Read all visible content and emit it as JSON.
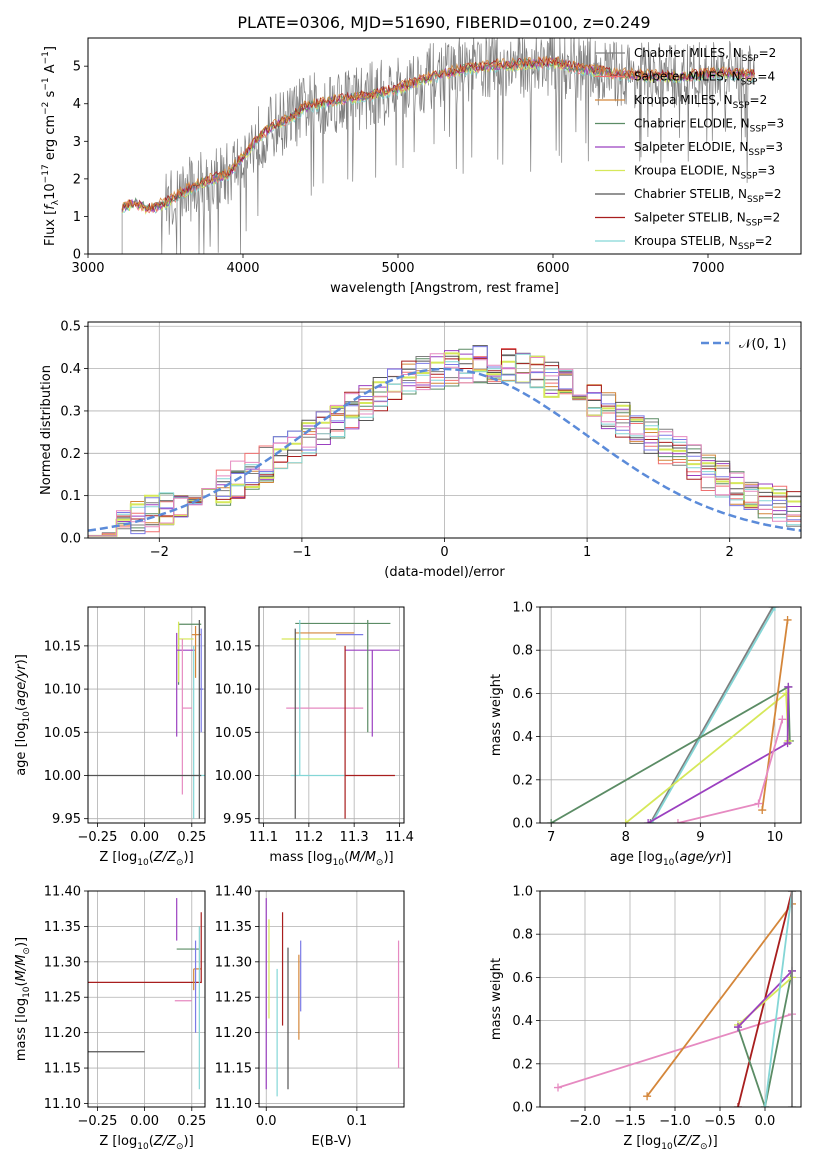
{
  "figure": {
    "title": "PLATE=0306, MJD=51690, FIBERID=0100, z=0.249"
  },
  "legend_colors": {
    "Chabrier MILES": "#7f7f7f",
    "Salpeter MILES": "#f07070",
    "Kroupa MILES": "#d4863a",
    "Chabrier ELODIE": "#5b8c65",
    "Salpeter ELODIE": "#9b40c0",
    "Kroupa ELODIE": "#d6e85a",
    "Chabrier STELIB": "#555555",
    "Salpeter STELIB": "#a81e1e",
    "Kroupa STELIB": "#84d6d6",
    "lilac": "#7b7be6",
    "pink": "#e68ac1",
    "normal": "#5b8bd9"
  },
  "chart_data": [
    {
      "id": "spectrum",
      "type": "line",
      "xlabel": "wavelength [Angstrom, rest frame]",
      "ylabel": "Flux [f_λ10^{-17} erg cm^{-2} s^{-1} A^{-1}]",
      "xlim": [
        3000,
        7600
      ],
      "ylim": [
        0,
        5.75
      ],
      "xticks": [
        3000,
        4000,
        5000,
        6000,
        7000
      ],
      "yticks": [
        0,
        1,
        2,
        3,
        4,
        5
      ],
      "legend_position": "upper right",
      "series": [
        {
          "name": "Chabrier MILES, N_SSP=2",
          "label_main": "Chabrier MILES, N",
          "label_sub": "SSP",
          "label_tail": "=2",
          "color": "#7f7f7f"
        },
        {
          "name": "Salpeter MILES, N_SSP=4",
          "label_main": "Salpeter MILES, N",
          "label_sub": "SSP",
          "label_tail": "=4",
          "color": "#f07070"
        },
        {
          "name": "Kroupa MILES, N_SSP=2",
          "label_main": "Kroupa MILES, N",
          "label_sub": "SSP",
          "label_tail": "=2",
          "color": "#d4863a"
        },
        {
          "name": "Chabrier ELODIE, N_SSP=3",
          "label_main": "Chabrier ELODIE, N",
          "label_sub": "SSP",
          "label_tail": "=3",
          "color": "#5b8c65"
        },
        {
          "name": "Salpeter ELODIE, N_SSP=3",
          "label_main": "Salpeter ELODIE, N",
          "label_sub": "SSP",
          "label_tail": "=3",
          "color": "#9b40c0"
        },
        {
          "name": "Kroupa ELODIE, N_SSP=3",
          "label_main": "Kroupa ELODIE, N",
          "label_sub": "SSP",
          "label_tail": "=3",
          "color": "#d6e85a"
        },
        {
          "name": "Chabrier STELIB, N_SSP=2",
          "label_main": "Chabrier STELIB, N",
          "label_sub": "SSP",
          "label_tail": "=2",
          "color": "#555555"
        },
        {
          "name": "Salpeter STELIB, N_SSP=2",
          "label_main": "Salpeter STELIB, N",
          "label_sub": "SSP",
          "label_tail": "=2",
          "color": "#a81e1e"
        },
        {
          "name": "Kroupa STELIB, N_SSP=2",
          "label_main": "Kroupa STELIB, N",
          "label_sub": "SSP",
          "label_tail": "=2",
          "color": "#84d6d6"
        }
      ],
      "continuum_anchor_points": {
        "x": [
          3220,
          3300,
          3400,
          3500,
          3600,
          3700,
          3800,
          3900,
          4000,
          4100,
          4200,
          4300,
          4400,
          4600,
          4800,
          5000,
          5200,
          5400,
          5600,
          5800,
          6000,
          6200,
          6400,
          6600,
          6800,
          7000,
          7200,
          7300
        ],
        "y": [
          1.25,
          1.35,
          1.2,
          1.35,
          1.6,
          1.85,
          2.0,
          2.1,
          2.6,
          3.1,
          3.4,
          3.6,
          3.9,
          4.1,
          4.2,
          4.4,
          4.7,
          4.9,
          5.0,
          5.05,
          5.1,
          4.9,
          4.8,
          4.75,
          4.7,
          4.8,
          4.8,
          4.75
        ]
      }
    },
    {
      "id": "residuals",
      "type": "histogram",
      "xlabel": "(data-model)/error",
      "ylabel": "Normed distribution",
      "xlim": [
        -2.5,
        2.5
      ],
      "ylim": [
        0,
        0.51
      ],
      "xticks": [
        -2,
        -1,
        0,
        1,
        2
      ],
      "yticks": [
        0.0,
        0.1,
        0.2,
        0.3,
        0.4,
        0.5
      ],
      "legend": {
        "text": "𝒩(0, 1)",
        "position": "upper right"
      },
      "bin_width": 0.1
    },
    {
      "id": "age_vs_Z",
      "type": "errorbar",
      "xlabel": "Z [log10(Z/Z☉)]",
      "ylabel": "age  [log10(age/yr)]",
      "xlim": [
        -0.3,
        0.32
      ],
      "ylim": [
        9.945,
        10.195
      ],
      "xticks": [
        -0.25,
        0.0,
        0.25
      ],
      "yticks": [
        9.95,
        10.0,
        10.05,
        10.1,
        10.15
      ],
      "points": [
        {
          "x": 0.18,
          "xerr": [
            0.0,
            0.12
          ],
          "y": 10.175,
          "yerr": [
            0.07,
            0.0
          ],
          "color": "#5b8c65"
        },
        {
          "x": 0.18,
          "xerr": [
            0.0,
            0.08
          ],
          "y": 10.158,
          "yerr": [
            0.05,
            0.02
          ],
          "color": "#d6e85a"
        },
        {
          "x": 0.17,
          "xerr": [
            0.0,
            0.1
          ],
          "y": 10.145,
          "yerr": [
            0.1,
            0.02
          ],
          "color": "#9b40c0"
        },
        {
          "x": 0.27,
          "xerr": [
            0.02,
            0.03
          ],
          "y": 10.163,
          "yerr": [
            0.05,
            0.01
          ],
          "color": "#d4863a"
        },
        {
          "x": 0.2,
          "xerr": [
            0.0,
            0.05
          ],
          "y": 10.078,
          "yerr": [
            0.1,
            0.08
          ],
          "color": "#e68ac1"
        },
        {
          "x": 0.26,
          "xerr": [
            0.0,
            0.06
          ],
          "y": 10.0,
          "yerr": [
            0.05,
            0.15
          ],
          "color": "#84d6d6"
        },
        {
          "x": 0.0,
          "xerr": [
            0.3,
            0.3
          ],
          "y": 10.0,
          "yerr": [
            0.0,
            0.0
          ],
          "color": "#555555"
        },
        {
          "x": 0.29,
          "xerr": [
            0.0,
            0.02
          ],
          "y": 10.1,
          "yerr": [
            0.15,
            0.08
          ],
          "color": "#555555"
        },
        {
          "x": 0.3,
          "xerr": [
            0.0,
            0.01
          ],
          "y": 10.1,
          "yerr": [
            0.05,
            0.07
          ],
          "color": "#7b7be6"
        }
      ]
    },
    {
      "id": "age_vs_mass",
      "type": "errorbar",
      "xlabel": "mass [log10(M/M☉)]",
      "ylabel": "",
      "xlim": [
        11.09,
        11.41
      ],
      "ylim": [
        9.945,
        10.195
      ],
      "xticks": [
        11.1,
        11.2,
        11.3,
        11.4
      ],
      "yticks": [
        9.95,
        10.0,
        10.05,
        10.1,
        10.15
      ],
      "points": [
        {
          "x": 11.32,
          "xerr": [
            0.15,
            0.06
          ],
          "y": 10.176,
          "yerr": [
            0.0,
            0.0
          ],
          "color": "#5b8c65"
        },
        {
          "x": 11.3,
          "xerr": [
            0.13,
            0.0
          ],
          "y": 10.165,
          "yerr": [
            0.0,
            0.0
          ],
          "color": "#d4863a"
        },
        {
          "x": 11.26,
          "xerr": [
            0.0,
            0.06
          ],
          "y": 10.163,
          "yerr": [
            0.0,
            0.0
          ],
          "color": "#7b7be6"
        },
        {
          "x": 11.2,
          "xerr": [
            0.06,
            0.06
          ],
          "y": 10.158,
          "yerr": [
            0.0,
            0.0
          ],
          "color": "#d6e85a"
        },
        {
          "x": 11.34,
          "xerr": [
            0.06,
            0.06
          ],
          "y": 10.145,
          "yerr": [
            0.1,
            0.0
          ],
          "color": "#9b40c0"
        },
        {
          "x": 11.25,
          "xerr": [
            0.1,
            0.07
          ],
          "y": 10.078,
          "yerr": [
            0.0,
            0.0
          ],
          "color": "#e68ac1"
        },
        {
          "x": 11.28,
          "xerr": [
            0.12,
            0.0
          ],
          "y": 10.0,
          "yerr": [
            0.0,
            0.0
          ],
          "color": "#84d6d6"
        },
        {
          "x": 11.31,
          "xerr": [
            0.03,
            0.08
          ],
          "y": 10.0,
          "yerr": [
            0.0,
            0.0
          ],
          "color": "#a81e1e"
        },
        {
          "x": 11.17,
          "xerr": [
            0.0,
            0.0
          ],
          "y": 10.1,
          "yerr": [
            0.15,
            0.07
          ],
          "color": "#555555"
        },
        {
          "x": 11.18,
          "xerr": [
            0.0,
            0.0
          ],
          "y": 10.1,
          "yerr": [
            0.1,
            0.08
          ],
          "color": "#84d6d6"
        },
        {
          "x": 11.33,
          "xerr": [
            0.0,
            0.0
          ],
          "y": 10.1,
          "yerr": [
            0.05,
            0.08
          ],
          "color": "#5b8c65"
        },
        {
          "x": 11.28,
          "xerr": [
            0.0,
            0.0
          ],
          "y": 10.05,
          "yerr": [
            0.1,
            0.1
          ],
          "color": "#a81e1e"
        }
      ]
    },
    {
      "id": "weight_vs_age",
      "type": "line",
      "xlabel": "age  [log10(age/yr)]",
      "ylabel": "mass weight",
      "xlim": [
        6.85,
        10.35
      ],
      "ylim": [
        0,
        1.0
      ],
      "xticks": [
        7,
        8,
        9,
        10
      ],
      "yticks": [
        0.0,
        0.2,
        0.4,
        0.6,
        0.8,
        1.0
      ],
      "series": [
        {
          "name": "Chabrier MILES",
          "x": [
            8.33,
            9.97
          ],
          "y": [
            0.0,
            1.0
          ],
          "color": "#7f7f7f"
        },
        {
          "name": "Kroupa STELIB",
          "x": [
            8.35,
            10.0
          ],
          "y": [
            0.0,
            1.0
          ],
          "color": "#84d6d6"
        },
        {
          "name": "Chabrier ELODIE",
          "x": [
            7.0,
            10.18,
            10.2
          ],
          "y": [
            0.0,
            0.63,
            0.38
          ],
          "color": "#5b8c65"
        },
        {
          "name": "Kroupa ELODIE",
          "x": [
            8.0,
            10.15,
            10.18
          ],
          "y": [
            0.0,
            0.6,
            0.38
          ],
          "color": "#d6e85a"
        },
        {
          "name": "Salpeter ELODIE",
          "x": [
            8.3,
            10.17,
            10.18
          ],
          "y": [
            0.0,
            0.37,
            0.63
          ],
          "color": "#9b40c0"
        },
        {
          "name": "Kroupa MILES",
          "x": [
            9.83,
            10.17
          ],
          "y": [
            0.06,
            0.94
          ],
          "color": "#d4863a"
        },
        {
          "name": "Salpeter MILES",
          "x": [
            8.7,
            9.78,
            10.1
          ],
          "y": [
            0.0,
            0.09,
            0.48
          ],
          "color": "#e68ac1"
        }
      ]
    },
    {
      "id": "mass_vs_Z",
      "type": "errorbar",
      "xlabel": "Z [log10(Z/Z☉)]",
      "ylabel": "mass [log10(M/M☉)]",
      "xlim": [
        -0.3,
        0.32
      ],
      "ylim": [
        11.095,
        11.4
      ],
      "xticks": [
        -0.25,
        0.0,
        0.25
      ],
      "yticks": [
        11.1,
        11.15,
        11.2,
        11.25,
        11.3,
        11.35,
        11.4
      ],
      "points": [
        {
          "x": 0.17,
          "xerr": [
            0.0,
            0.0
          ],
          "y": 11.37,
          "yerr": [
            0.04,
            0.02
          ],
          "color": "#9b40c0"
        },
        {
          "x": 0.17,
          "xerr": [
            0.0,
            0.12
          ],
          "y": 11.318,
          "yerr": [
            0.0,
            0.0
          ],
          "color": "#5b8c65"
        },
        {
          "x": 0.0,
          "xerr": [
            0.3,
            0.3
          ],
          "y": 11.271,
          "yerr": [
            0.0,
            0.0
          ],
          "color": "#a81e1e"
        },
        {
          "x": 0.26,
          "xerr": [
            0.0,
            0.04
          ],
          "y": 11.29,
          "yerr": [
            0.03,
            0.0
          ],
          "color": "#d4863a"
        },
        {
          "x": 0.2,
          "xerr": [
            0.04,
            0.05
          ],
          "y": 11.245,
          "yerr": [
            0.0,
            0.0
          ],
          "color": "#e68ac1"
        },
        {
          "x": 0.0,
          "xerr": [
            0.3,
            0.0
          ],
          "y": 11.173,
          "yerr": [
            0.0,
            0.0
          ],
          "color": "#555555"
        },
        {
          "x": 0.27,
          "xerr": [
            0.0,
            0.0
          ],
          "y": 11.28,
          "yerr": [
            0.08,
            0.05
          ],
          "color": "#7b7be6"
        },
        {
          "x": 0.29,
          "xerr": [
            0.0,
            0.0
          ],
          "y": 11.2,
          "yerr": [
            0.08,
            0.15
          ],
          "color": "#84d6d6"
        },
        {
          "x": 0.3,
          "xerr": [
            0.0,
            0.0
          ],
          "y": 11.32,
          "yerr": [
            0.05,
            0.05
          ],
          "color": "#a81e1e"
        }
      ]
    },
    {
      "id": "mass_vs_ebv",
      "type": "errorbar",
      "xlabel": "E(B-V)",
      "ylabel": "",
      "xlim": [
        -0.008,
        0.152
      ],
      "ylim": [
        11.095,
        11.4
      ],
      "xticks": [
        0.0,
        0.1
      ],
      "yticks": [
        11.1,
        11.15,
        11.2,
        11.25,
        11.3,
        11.35,
        11.4
      ],
      "points": [
        {
          "x": 0.0,
          "ymin": 11.12,
          "ymax": 11.39,
          "color": "#9b40c0"
        },
        {
          "x": 0.003,
          "ymin": 11.22,
          "ymax": 11.36,
          "color": "#d6e85a"
        },
        {
          "x": 0.012,
          "ymin": 11.11,
          "ymax": 11.29,
          "color": "#84d6d6"
        },
        {
          "x": 0.018,
          "ymin": 11.21,
          "ymax": 11.37,
          "color": "#a81e1e"
        },
        {
          "x": 0.024,
          "ymin": 11.12,
          "ymax": 11.32,
          "color": "#555555"
        },
        {
          "x": 0.036,
          "ymin": 11.19,
          "ymax": 11.31,
          "color": "#d4863a"
        },
        {
          "x": 0.038,
          "ymin": 11.23,
          "ymax": 11.33,
          "color": "#7b7be6"
        },
        {
          "x": 0.146,
          "ymin": 11.15,
          "ymax": 11.33,
          "color": "#e68ac1"
        }
      ]
    },
    {
      "id": "weight_vs_Z",
      "type": "line",
      "xlabel": "Z [log10(Z/Z☉)]",
      "ylabel": "mass weight",
      "xlim": [
        -2.5,
        0.4
      ],
      "ylim": [
        0,
        1.0
      ],
      "xticks": [
        -2.0,
        -1.5,
        -1.0,
        -0.5,
        0.0
      ],
      "yticks": [
        0.0,
        0.2,
        0.4,
        0.6,
        0.8,
        1.0
      ],
      "series": [
        {
          "name": "Salpeter MILES",
          "x": [
            -2.3,
            0.3
          ],
          "y": [
            0.09,
            0.43
          ],
          "color": "#e68ac1"
        },
        {
          "name": "Kroupa MILES",
          "x": [
            -1.31,
            0.3
          ],
          "y": [
            0.05,
            0.94
          ],
          "color": "#d4863a"
        },
        {
          "name": "Salpeter STELIB",
          "x": [
            -0.3,
            0.3
          ],
          "y": [
            0.0,
            1.0
          ],
          "color": "#a81e1e"
        },
        {
          "name": "Chabrier ELODIE",
          "x": [
            -0.3,
            0.0,
            0.3
          ],
          "y": [
            0.37,
            0.0,
            0.63
          ],
          "color": "#5b8c65"
        },
        {
          "name": "Kroupa ELODIE",
          "x": [
            -0.3,
            0.3
          ],
          "y": [
            0.38,
            0.6
          ],
          "color": "#d6e85a"
        },
        {
          "name": "Salpeter ELODIE",
          "x": [
            -0.3,
            0.3
          ],
          "y": [
            0.37,
            0.63
          ],
          "color": "#9b40c0"
        },
        {
          "name": "Kroupa STELIB",
          "x": [
            0.0,
            0.3
          ],
          "y": [
            0.0,
            1.0
          ],
          "color": "#84d6d6"
        },
        {
          "name": "Chabrier MILES",
          "x": [
            0.3,
            0.3
          ],
          "y": [
            0.0,
            1.0
          ],
          "color": "#7f7f7f"
        }
      ]
    }
  ]
}
